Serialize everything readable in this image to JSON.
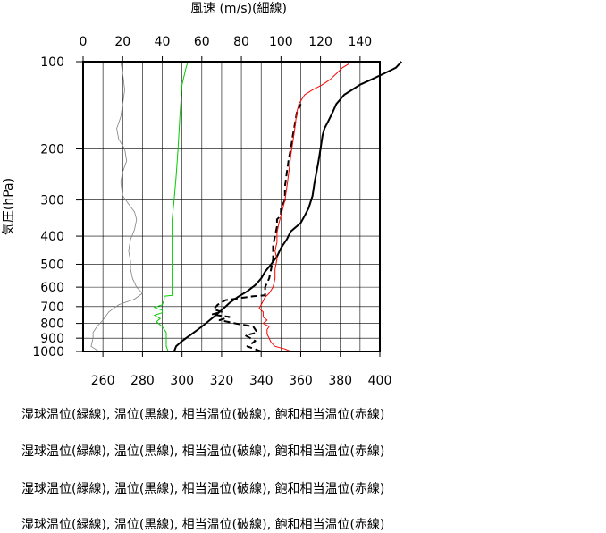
{
  "chart_data": {
    "type": "line",
    "title": "",
    "top_axis_label": "風速 (m/s)(細線)",
    "ylabel": "気圧(hPa)",
    "y_scale": "log",
    "y_reversed": true,
    "ylim": [
      1000,
      100
    ],
    "y_ticks": [
      100,
      200,
      300,
      400,
      500,
      600,
      700,
      800,
      900,
      1000
    ],
    "bottom_axis": {
      "range": [
        250,
        400
      ],
      "ticks": [
        260,
        280,
        300,
        320,
        340,
        360,
        380,
        400
      ]
    },
    "top_axis": {
      "range": [
        0,
        150
      ],
      "ticks": [
        0,
        20,
        40,
        60,
        80,
        100,
        120,
        140
      ]
    },
    "grid": true,
    "series": [
      {
        "axis": "top",
        "color": "#808080",
        "width": 0.8,
        "dash": false,
        "points": [
          [
            8,
            1000
          ],
          [
            4,
            960
          ],
          [
            5,
            900
          ],
          [
            5,
            860
          ],
          [
            7,
            820
          ],
          [
            10,
            780
          ],
          [
            13,
            730
          ],
          [
            18,
            690
          ],
          [
            26,
            660
          ],
          [
            30,
            630
          ],
          [
            27,
            600
          ],
          [
            25,
            560
          ],
          [
            24,
            520
          ],
          [
            24,
            490
          ],
          [
            23,
            450
          ],
          [
            24,
            410
          ],
          [
            26,
            380
          ],
          [
            27,
            350
          ],
          [
            26,
            330
          ],
          [
            23,
            310
          ],
          [
            20,
            290
          ],
          [
            19,
            260
          ],
          [
            20,
            240
          ],
          [
            22,
            220
          ],
          [
            21,
            200
          ],
          [
            18,
            185
          ],
          [
            17,
            170
          ],
          [
            19,
            155
          ],
          [
            20,
            140
          ],
          [
            21,
            125
          ],
          [
            20,
            110
          ],
          [
            19,
            100
          ]
        ]
      },
      {
        "axis": "bottom",
        "color": "#00cc00",
        "width": 1,
        "dash": false,
        "points": [
          [
            293,
            1000
          ],
          [
            292,
            960
          ],
          [
            292,
            900
          ],
          [
            292,
            860
          ],
          [
            290,
            820
          ],
          [
            287,
            790
          ],
          [
            289,
            770
          ],
          [
            286,
            750
          ],
          [
            290,
            735
          ],
          [
            290,
            720
          ],
          [
            286,
            705
          ],
          [
            290,
            690
          ],
          [
            291,
            665
          ],
          [
            291,
            645
          ],
          [
            295,
            640
          ],
          [
            295,
            600
          ],
          [
            295,
            500
          ],
          [
            295,
            420
          ],
          [
            295,
            350
          ],
          [
            296,
            300
          ],
          [
            297,
            250
          ],
          [
            298,
            200
          ],
          [
            299,
            150
          ],
          [
            300,
            120
          ],
          [
            302,
            105
          ],
          [
            303,
            100
          ]
        ]
      },
      {
        "axis": "bottom",
        "color": "#000000",
        "width": 2,
        "dash": false,
        "points": [
          [
            296,
            1000
          ],
          [
            297,
            960
          ],
          [
            300,
            920
          ],
          [
            304,
            880
          ],
          [
            308,
            840
          ],
          [
            312,
            800
          ],
          [
            316,
            760
          ],
          [
            320,
            720
          ],
          [
            324,
            680
          ],
          [
            328,
            650
          ],
          [
            333,
            620
          ],
          [
            337,
            590
          ],
          [
            340,
            560
          ],
          [
            342,
            530
          ],
          [
            345,
            500
          ],
          [
            348,
            470
          ],
          [
            350,
            440
          ],
          [
            353,
            410
          ],
          [
            355,
            385
          ],
          [
            358,
            370
          ],
          [
            360,
            360
          ],
          [
            362,
            340
          ],
          [
            364,
            320
          ],
          [
            366,
            290
          ],
          [
            367,
            260
          ],
          [
            368,
            240
          ],
          [
            369,
            220
          ],
          [
            370,
            200
          ],
          [
            371,
            180
          ],
          [
            372,
            170
          ],
          [
            374,
            160
          ],
          [
            376,
            150
          ],
          [
            378,
            140
          ],
          [
            382,
            130
          ],
          [
            386,
            125
          ],
          [
            390,
            120
          ],
          [
            396,
            115
          ],
          [
            402,
            110
          ],
          [
            408,
            105
          ],
          [
            411,
            100
          ]
        ]
      },
      {
        "axis": "bottom",
        "color": "#000000",
        "width": 2,
        "dash": true,
        "points": [
          [
            340,
            1000
          ],
          [
            333,
            960
          ],
          [
            337,
            920
          ],
          [
            332,
            880
          ],
          [
            338,
            860
          ],
          [
            336,
            820
          ],
          [
            327,
            800
          ],
          [
            319,
            780
          ],
          [
            324,
            760
          ],
          [
            315,
            745
          ],
          [
            320,
            730
          ],
          [
            316,
            715
          ],
          [
            318,
            690
          ],
          [
            322,
            665
          ],
          [
            336,
            645
          ],
          [
            342,
            640
          ],
          [
            342,
            600
          ],
          [
            344,
            560
          ],
          [
            345,
            520
          ],
          [
            346,
            480
          ],
          [
            346,
            430
          ],
          [
            347,
            400
          ],
          [
            348,
            370
          ],
          [
            348,
            350
          ],
          [
            350,
            340
          ],
          [
            350,
            320
          ],
          [
            352,
            300
          ],
          [
            352,
            270
          ],
          [
            353,
            240
          ],
          [
            354,
            215
          ],
          [
            355,
            200
          ],
          [
            356,
            180
          ],
          [
            357,
            165
          ],
          [
            358,
            150
          ],
          [
            360,
            140
          ]
        ]
      },
      {
        "axis": "bottom",
        "color": "#ff0000",
        "width": 1,
        "dash": false,
        "points": [
          [
            355,
            1000
          ],
          [
            352,
            980
          ],
          [
            347,
            960
          ],
          [
            345,
            930
          ],
          [
            344,
            900
          ],
          [
            343,
            870
          ],
          [
            343,
            840
          ],
          [
            344,
            820
          ],
          [
            341,
            800
          ],
          [
            343,
            780
          ],
          [
            341,
            760
          ],
          [
            341,
            730
          ],
          [
            339,
            710
          ],
          [
            340,
            690
          ],
          [
            341,
            670
          ],
          [
            342,
            650
          ],
          [
            344,
            630
          ],
          [
            346,
            600
          ],
          [
            347,
            560
          ],
          [
            347,
            520
          ],
          [
            348,
            480
          ],
          [
            347,
            450
          ],
          [
            348,
            420
          ],
          [
            348,
            390
          ],
          [
            349,
            360
          ],
          [
            350,
            340
          ],
          [
            351,
            320
          ],
          [
            352,
            300
          ],
          [
            353,
            270
          ],
          [
            354,
            240
          ],
          [
            355,
            210
          ],
          [
            356,
            190
          ],
          [
            357,
            170
          ],
          [
            358,
            150
          ],
          [
            359,
            140
          ],
          [
            362,
            130
          ],
          [
            366,
            125
          ],
          [
            371,
            120
          ],
          [
            375,
            115
          ],
          [
            378,
            110
          ],
          [
            381,
            105
          ],
          [
            384,
            102
          ],
          [
            385,
            100
          ]
        ]
      }
    ]
  },
  "captions": [
    "湿球温位(緑線), 温位(黒線), 相当温位(破線), 飽和相当温位(赤線)",
    "湿球温位(緑線), 温位(黒線), 相当温位(破線), 飽和相当温位(赤線)",
    "湿球温位(緑線), 温位(黒線), 相当温位(破線), 飽和相当温位(赤線)",
    "湿球温位(緑線), 温位(黒線), 相当温位(破線), 飽和相当温位(赤線)"
  ]
}
